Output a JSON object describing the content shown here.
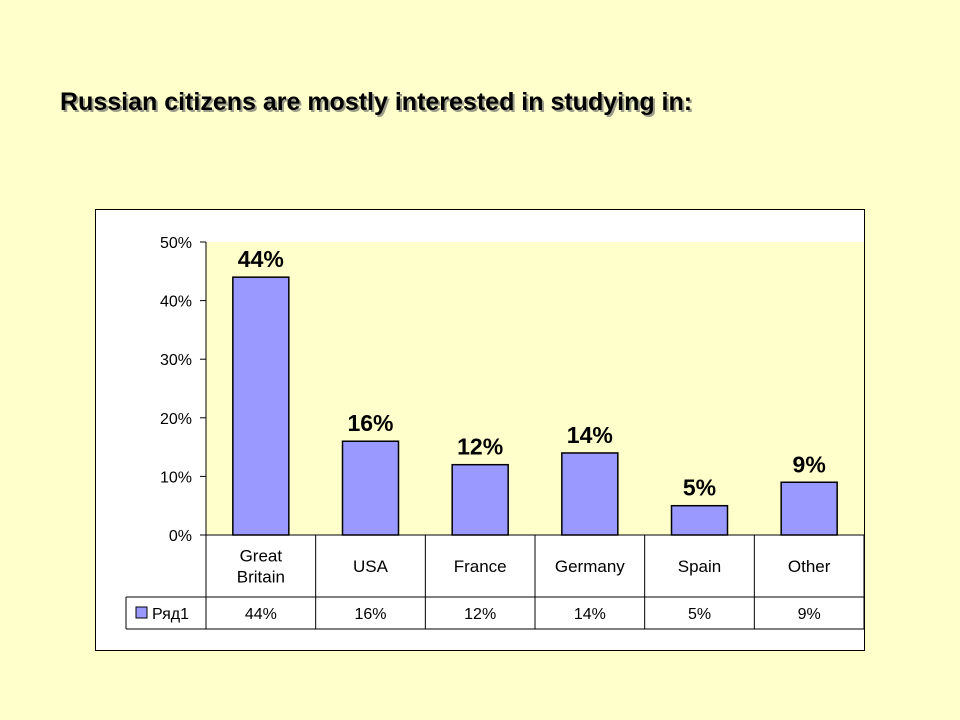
{
  "slide": {
    "title": "Russian citizens are mostly interested in studying in:"
  },
  "colors": {
    "background": "#ffffcc",
    "plot_area": "#ffffcc",
    "bar_fill": "#9999ff",
    "bar_stroke": "#000000"
  },
  "chart_data": {
    "type": "bar",
    "categories": [
      "Great Britain",
      "USA",
      "France",
      "Germany",
      "Spain",
      "Other"
    ],
    "category_label_lines": [
      [
        "Great",
        "Britain"
      ],
      [
        "USA"
      ],
      [
        "France"
      ],
      [
        "Germany"
      ],
      [
        "Spain"
      ],
      [
        "Other"
      ]
    ],
    "series": [
      {
        "name": "Ряд1",
        "values": [
          44,
          16,
          12,
          14,
          5,
          9
        ],
        "labels": [
          "44%",
          "16%",
          "12%",
          "14%",
          "5%",
          "9%"
        ]
      }
    ],
    "ylim": [
      0,
      50
    ],
    "yticks": [
      0,
      10,
      20,
      30,
      40,
      50
    ],
    "ytick_labels": [
      "0%",
      "10%",
      "20%",
      "30%",
      "40%",
      "50%"
    ],
    "grid": false,
    "legend": "data-table",
    "title": "",
    "xlabel": "",
    "ylabel": ""
  }
}
